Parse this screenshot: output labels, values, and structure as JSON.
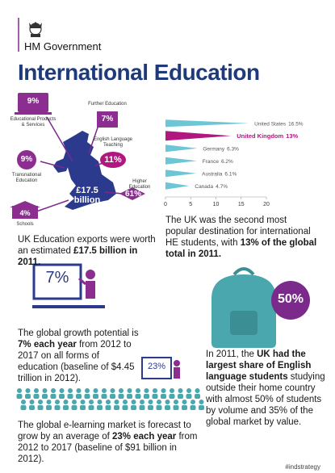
{
  "header": {
    "organisation": "HM Government",
    "title": "International Education"
  },
  "map": {
    "total": "£17.5 billion",
    "sectors": [
      {
        "label": "Educational Products & Services",
        "value": "9%"
      },
      {
        "label": "Further Education",
        "value": "7%"
      },
      {
        "label": "English Language Teaching",
        "value": "11%"
      },
      {
        "label": "Transnational Education",
        "value": "9%"
      },
      {
        "label": "Higher Education",
        "value": "61%"
      },
      {
        "label": "Schools",
        "value": "4%"
      }
    ],
    "caption": [
      {
        "text": "UK Education exports were worth an estimated "
      },
      {
        "text": "£17.5 billion in 2011.",
        "bold": true
      }
    ]
  },
  "chart_data": {
    "type": "bar",
    "orientation": "horizontal",
    "categories": [
      "United States",
      "United Kingdom",
      "Germany",
      "France",
      "Australia",
      "Canada"
    ],
    "values": [
      16.5,
      13,
      6.3,
      6.2,
      6.1,
      4.7
    ],
    "value_labels": [
      "16.5%",
      "13%",
      "6.3%",
      "6.2%",
      "6.1%",
      "4.7%"
    ],
    "colors": [
      "#6cc6d6",
      "#b0177f",
      "#6cc6d6",
      "#6cc6d6",
      "#6cc6d6",
      "#6cc6d6"
    ],
    "highlight": "United Kingdom",
    "xlim": [
      0,
      20
    ],
    "xticks": [
      0,
      5,
      10,
      15,
      20
    ]
  },
  "chart_caption": [
    {
      "text": "The UK was the second most popular destination for international HE students, with "
    },
    {
      "text": "13% of the global  total in 2011.",
      "bold": true
    }
  ],
  "growth": {
    "icon_value": "7%",
    "caption": [
      {
        "text": "The global growth potential is "
      },
      {
        "text": "7% each year",
        "bold": true
      },
      {
        "text": " from 2012 to 2017 on all forms of education (baseline of $4.45 trillion in 2012)."
      }
    ]
  },
  "english": {
    "icon_value": "50%",
    "caption": [
      {
        "text": "In 2011, the "
      },
      {
        "text": "UK had the largest share of  English language students",
        "bold": true
      },
      {
        "text": " studying outside their home country with almost 50% of students by volume and 35% of the global market by value."
      }
    ]
  },
  "elearning": {
    "icon_value": "23%",
    "caption": [
      {
        "text": "The global e-learning market is forecast to grow by an average of "
      },
      {
        "text": "23% each year",
        "bold": true
      },
      {
        "text": " from 2012 to 2017 (baseline of $91 billion in 2012)."
      }
    ]
  },
  "footer": {
    "hashtag": "#indstrategy"
  }
}
